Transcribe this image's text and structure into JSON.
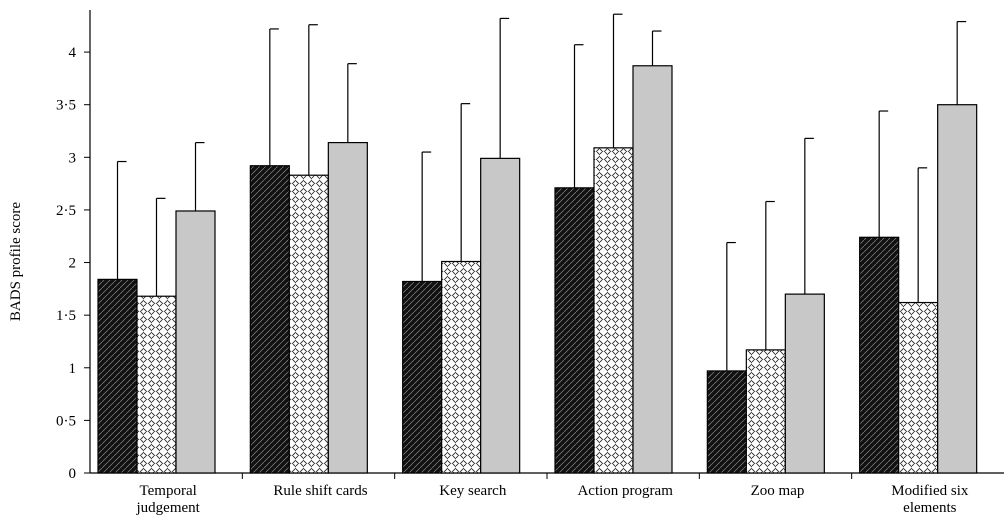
{
  "chart_data": {
    "type": "bar",
    "title": "",
    "xlabel": "",
    "ylabel": "BADS profile score",
    "ylim": [
      0,
      4.4
    ],
    "yticks": [
      0,
      0.5,
      1,
      1.5,
      2,
      2.5,
      3,
      3.5,
      4
    ],
    "ytick_labels": [
      "0",
      "0·5",
      "1",
      "1·5",
      "2",
      "2·5",
      "3",
      "3·5",
      "4"
    ],
    "grid": false,
    "legend": "none",
    "categories": [
      [
        "Temporal",
        "judgement"
      ],
      [
        "Rule shift cards"
      ],
      [
        "Key search"
      ],
      [
        "Action program"
      ],
      [
        "Zoo map"
      ],
      [
        "Modified six",
        "elements"
      ]
    ],
    "series": [
      {
        "pattern": "solid-black-diagonal",
        "color": "#111111",
        "values": [
          1.84,
          2.92,
          1.82,
          2.71,
          0.97,
          2.24
        ],
        "error": [
          1.12,
          1.3,
          1.23,
          1.36,
          1.22,
          1.2
        ]
      },
      {
        "pattern": "white-crosshatch",
        "color": "#ffffff",
        "values": [
          1.68,
          2.83,
          2.01,
          3.09,
          1.17,
          1.62
        ],
        "error": [
          0.93,
          1.43,
          1.5,
          1.27,
          1.41,
          1.28
        ]
      },
      {
        "pattern": "solid-grey",
        "color": "#c8c8c8",
        "values": [
          2.49,
          3.14,
          2.99,
          3.87,
          1.7,
          3.5
        ],
        "error": [
          0.65,
          0.75,
          1.33,
          0.33,
          1.48,
          0.79
        ]
      }
    ]
  }
}
